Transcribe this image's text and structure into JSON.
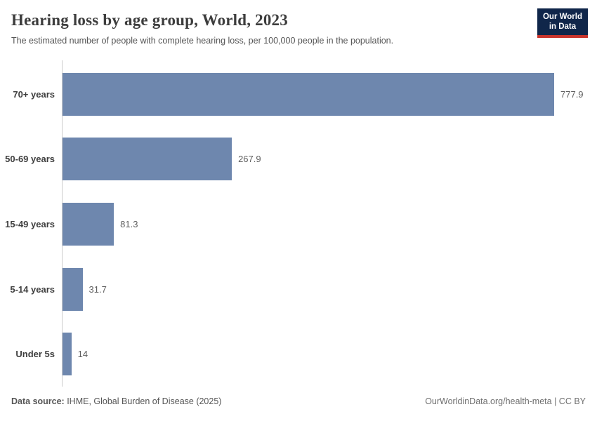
{
  "header": {
    "title": "Hearing loss by age group, World, 2023",
    "subtitle": "The estimated number of people with complete hearing loss, per 100,000 people in the population."
  },
  "logo": {
    "line1": "Our World",
    "line2": "in Data",
    "bg_color": "#10264a",
    "stripe_color": "#c9342c"
  },
  "chart_data": {
    "type": "bar",
    "orientation": "horizontal",
    "categories": [
      "70+ years",
      "50-69 years",
      "15-49 years",
      "5-14 years",
      "Under 5s"
    ],
    "values": [
      777.9,
      267.9,
      81.3,
      31.7,
      14
    ],
    "value_labels": [
      "777.9",
      "267.9",
      "81.3",
      "31.7",
      "14"
    ],
    "xmax": 777.9,
    "bar_color": "#6e87ae",
    "title": "Hearing loss by age group, World, 2023",
    "xlabel": "",
    "ylabel": "",
    "grid": false,
    "legend": false
  },
  "footer": {
    "datasource_label": "Data source:",
    "datasource_text": " IHME, Global Burden of Disease (2025)",
    "right_text": "OurWorldinData.org/health-meta | CC BY"
  }
}
